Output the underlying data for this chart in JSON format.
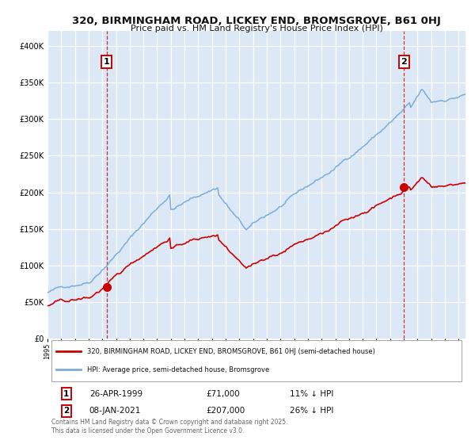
{
  "title": "320, BIRMINGHAM ROAD, LICKEY END, BROMSGROVE, B61 0HJ",
  "subtitle": "Price paid vs. HM Land Registry's House Price Index (HPI)",
  "fig_bg_color": "#ffffff",
  "plot_bg_color": "#dce8f5",
  "grid_color": "#ffffff",
  "red_line_color": "#cc0000",
  "blue_line_color": "#7aadda",
  "sale1_date_label": "26-APR-1999",
  "sale1_price_label": "£71,000",
  "sale1_hpi_diff": "11% ↓ HPI",
  "sale2_date_label": "08-JAN-2021",
  "sale2_price_label": "£207,000",
  "sale2_hpi_diff": "26% ↓ HPI",
  "ylim": [
    0,
    420000
  ],
  "yticks": [
    0,
    50000,
    100000,
    150000,
    200000,
    250000,
    300000,
    350000,
    400000
  ],
  "ytick_labels": [
    "£0",
    "£50K",
    "£100K",
    "£150K",
    "£200K",
    "£250K",
    "£300K",
    "£350K",
    "£400K"
  ],
  "legend_label_red": "320, BIRMINGHAM ROAD, LICKEY END, BROMSGROVE, B61 0HJ (semi-detached house)",
  "legend_label_blue": "HPI: Average price, semi-detached house, Bromsgrove",
  "footer": "Contains HM Land Registry data © Crown copyright and database right 2025.\nThis data is licensed under the Open Government Licence v3.0.",
  "sale1_x": 1999.32,
  "sale2_x": 2021.02,
  "marker_size": 7,
  "xstart": 1995.0,
  "xend": 2025.5
}
